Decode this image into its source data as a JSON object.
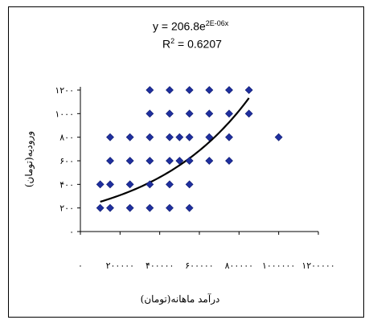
{
  "chart_data": {
    "type": "scatter",
    "xlabel": "درآمد ماهانه(تومان)",
    "ylabel": "ورودیه(تومان)",
    "xlim": [
      0,
      1200000
    ],
    "ylim": [
      0,
      1200
    ],
    "x_ticks": [
      0,
      200000,
      400000,
      600000,
      800000,
      1000000,
      1200000
    ],
    "y_ticks": [
      0,
      200,
      400,
      600,
      800,
      1000,
      1200
    ],
    "x_tick_labels": [
      "۰",
      "۲۰۰۰۰۰",
      "۴۰۰۰۰۰",
      "۶۰۰۰۰۰",
      "۸۰۰۰۰۰",
      "۱۰۰۰۰۰۰",
      "۱۲۰۰۰۰۰"
    ],
    "y_tick_labels": [
      "۰",
      "۲۰۰",
      "۴۰۰",
      "۶۰۰",
      "۸۰۰",
      "۱۰۰۰",
      "۱۲۰۰"
    ],
    "grid": false,
    "marker": "diamond",
    "point_color": "#1f2f9e",
    "trend_color": "#000000",
    "points": [
      {
        "x": 100000,
        "y": 200
      },
      {
        "x": 100000,
        "y": 400
      },
      {
        "x": 150000,
        "y": 200
      },
      {
        "x": 150000,
        "y": 400
      },
      {
        "x": 150000,
        "y": 600
      },
      {
        "x": 150000,
        "y": 800
      },
      {
        "x": 250000,
        "y": 200
      },
      {
        "x": 250000,
        "y": 400
      },
      {
        "x": 250000,
        "y": 600
      },
      {
        "x": 250000,
        "y": 800
      },
      {
        "x": 350000,
        "y": 200
      },
      {
        "x": 350000,
        "y": 400
      },
      {
        "x": 350000,
        "y": 600
      },
      {
        "x": 350000,
        "y": 800
      },
      {
        "x": 350000,
        "y": 1000
      },
      {
        "x": 350000,
        "y": 1200
      },
      {
        "x": 450000,
        "y": 200
      },
      {
        "x": 450000,
        "y": 400
      },
      {
        "x": 450000,
        "y": 600
      },
      {
        "x": 450000,
        "y": 800
      },
      {
        "x": 450000,
        "y": 1000
      },
      {
        "x": 450000,
        "y": 1200
      },
      {
        "x": 500000,
        "y": 600
      },
      {
        "x": 500000,
        "y": 800
      },
      {
        "x": 550000,
        "y": 200
      },
      {
        "x": 550000,
        "y": 400
      },
      {
        "x": 550000,
        "y": 600
      },
      {
        "x": 550000,
        "y": 800
      },
      {
        "x": 550000,
        "y": 1000
      },
      {
        "x": 550000,
        "y": 1200
      },
      {
        "x": 650000,
        "y": 600
      },
      {
        "x": 650000,
        "y": 800
      },
      {
        "x": 650000,
        "y": 1000
      },
      {
        "x": 650000,
        "y": 1200
      },
      {
        "x": 750000,
        "y": 600
      },
      {
        "x": 750000,
        "y": 800
      },
      {
        "x": 750000,
        "y": 1000
      },
      {
        "x": 750000,
        "y": 1200
      },
      {
        "x": 850000,
        "y": 1000
      },
      {
        "x": 850000,
        "y": 1200
      },
      {
        "x": 1000000,
        "y": 800
      }
    ],
    "trendline": {
      "type": "exponential",
      "a": 206.8,
      "b": 2e-06,
      "x_range": [
        100000,
        850000
      ],
      "equation_base": "y = 206.8e",
      "equation_exponent": "2E-06x",
      "r2_base": "R",
      "r2_exponent": "2",
      "r2_value": " = 0.6207"
    }
  }
}
